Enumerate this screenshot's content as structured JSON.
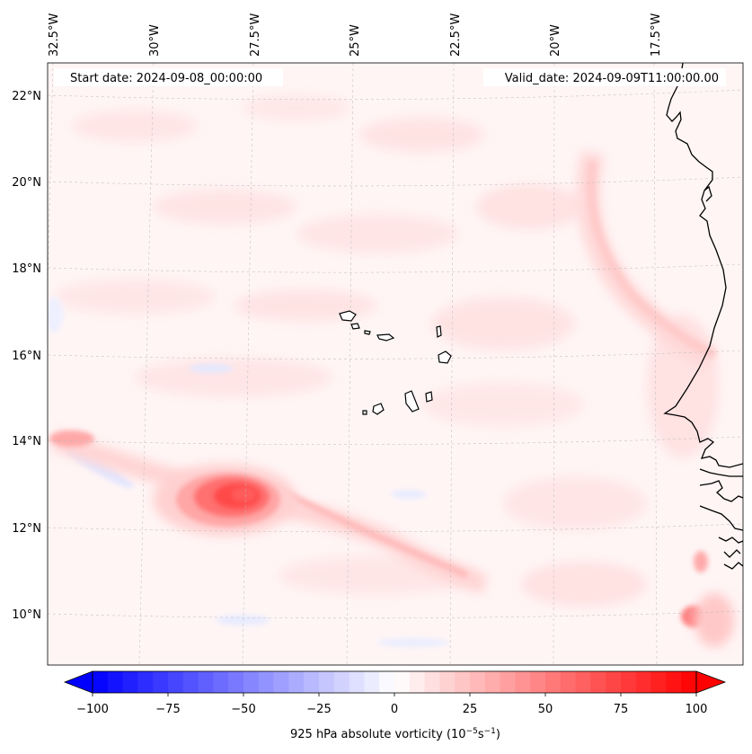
{
  "map": {
    "start_label": "Start date: 2024-09-08_00:00:00",
    "valid_label": "Valid_date: 2024-09-09T11:00:00.00",
    "lon_labels": [
      "32.5°W",
      "30°W",
      "27.5°W",
      "25°W",
      "22.5°W",
      "20°W",
      "17.5°W"
    ],
    "lat_labels": [
      "22°N",
      "20°N",
      "18°N",
      "16°N",
      "14°N",
      "12°N",
      "10°N"
    ],
    "features": {
      "vortex_label": "Vorticity maximum near 12.7°N 27.7°W",
      "islands": "Cape Verde Islands",
      "coast": "West African coastline"
    }
  },
  "colorbar": {
    "ticks": [
      "−100",
      "−75",
      "−50",
      "−25",
      "0",
      "25",
      "50",
      "75",
      "100"
    ],
    "label_main": "925 hPa absolute vorticity (10",
    "label_exp1": "−5",
    "label_mid": "s",
    "label_exp2": "−1",
    "label_end": ")",
    "vmin": -100,
    "vmax": 100,
    "levels": 41,
    "color_low": "#0000ff",
    "color_mid": "#ffffff",
    "color_high": "#ff0000"
  }
}
